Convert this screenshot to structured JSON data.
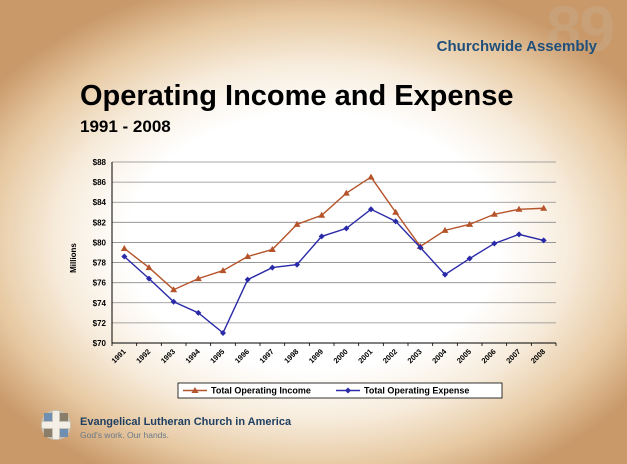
{
  "header": {
    "watermark": "89",
    "assembly_label": "Churchwide Assembly"
  },
  "slide": {
    "title": "Operating Income and Expense",
    "subtitle": "1991 - 2008"
  },
  "chart_data": {
    "type": "line",
    "x": [
      "1991",
      "1992",
      "1993",
      "1994",
      "1995",
      "1996",
      "1997",
      "1998",
      "1999",
      "2000",
      "2001",
      "2002",
      "2003",
      "2004",
      "2005",
      "2006",
      "2007",
      "2008"
    ],
    "ylabel": "Millions",
    "ylim": [
      70,
      88
    ],
    "yticks": [
      "$70",
      "$72",
      "$74",
      "$76",
      "$78",
      "$80",
      "$82",
      "$84",
      "$86",
      "$88"
    ],
    "ytick_values": [
      70,
      72,
      74,
      76,
      78,
      80,
      82,
      84,
      86,
      88
    ],
    "grid": true,
    "legend_position": "bottom",
    "series": [
      {
        "name": "Total Operating Income",
        "color": "#b5532a",
        "marker": "triangle",
        "values": [
          79.4,
          77.5,
          75.3,
          76.4,
          77.2,
          78.6,
          79.3,
          81.8,
          82.7,
          84.9,
          86.5,
          83.0,
          79.6,
          81.2,
          81.8,
          82.8,
          83.3,
          83.4
        ]
      },
      {
        "name": "Total Operating Expense",
        "color": "#2a2aa8",
        "marker": "diamond",
        "values": [
          78.6,
          76.4,
          74.1,
          73.0,
          71.0,
          76.3,
          77.5,
          77.8,
          80.6,
          81.4,
          83.3,
          82.1,
          79.5,
          76.8,
          78.4,
          79.9,
          80.8,
          80.2
        ]
      }
    ]
  },
  "footer": {
    "organization": "Evangelical Lutheran Church in America",
    "tagline": "God's work. Our hands.",
    "logo_icon": "elca-cross-logo-icon"
  }
}
